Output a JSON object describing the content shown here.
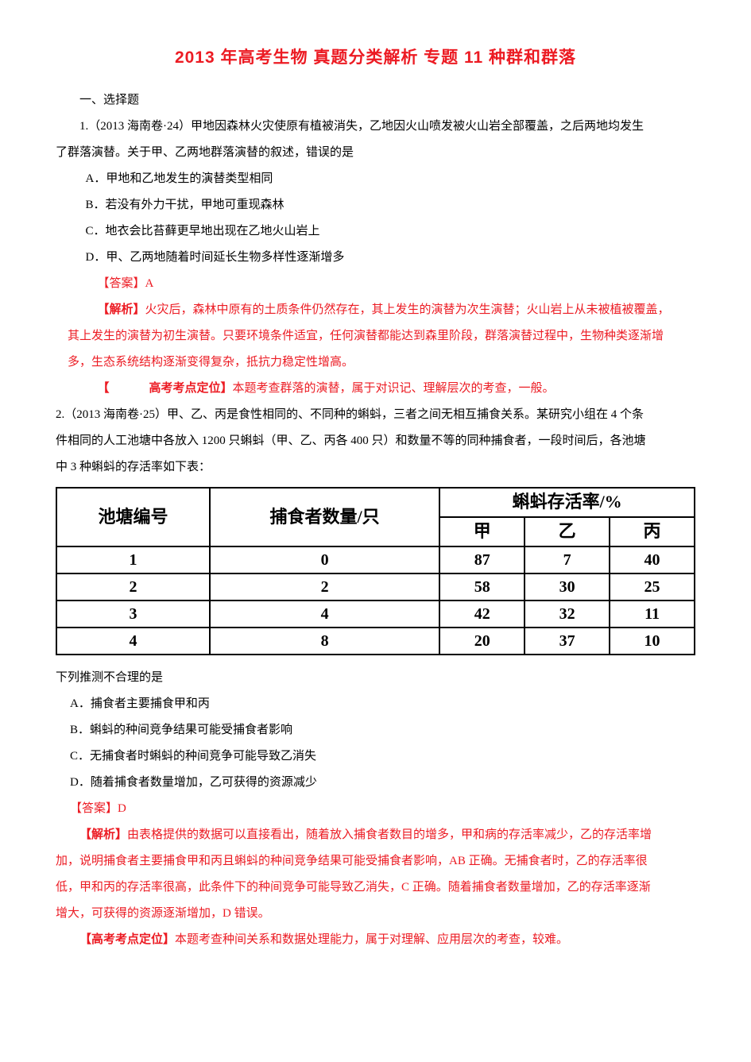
{
  "title": "2013 年高考生物 真题分类解析 专题 11 种群和群落",
  "section_header": "一、选择题",
  "q1": {
    "stem_part1": "1.（2013 海南卷·24）甲地因森林火灾使原有植被消失，乙地因火山喷发被火山岩全部覆盖，之后两地均发生",
    "stem_part2": "了群落演替。关于甲、乙两地群落演替的叙述，错误的是",
    "opt_a": "A．甲地和乙地发生的演替类型相同",
    "opt_b": "B．若没有外力干扰，甲地可重现森林",
    "opt_c": "C．地衣会比苔藓更早地出现在乙地火山岩上",
    "opt_d": "D．甲、乙两地随着时间延长生物多样性逐渐增多",
    "ans_label": "【答案】A",
    "jiexi_lead": "【解析】",
    "jiexi_l1_rest": "火灾后，森林中原有的土质条件仍然存在，其上发生的演替为次生演替；火山岩上从未被植被覆盖，",
    "jiexi_l2": "其上发生的演替为初生演替。只要环境条件适宜，任何演替都能达到森里阶段，群落演替过程中，生物种类逐渐增",
    "jiexi_l3": "多，生态系统结构逐渐变得复杂，抵抗力稳定性增高。",
    "kaodian_lead": "【",
    "kaodian_mid": "高考考点定位】",
    "kaodian_body": "本题考查群落的演替，属于对识记、理解层次的考查，一般。"
  },
  "q2": {
    "stem_l1": "2.（2013 海南卷·25）甲、乙、丙是食性相同的、不同种的蝌蚪，三者之间无相互捕食关系。某研究小组在 4 个条",
    "stem_l2": "件相同的人工池塘中各放入 1200 只蝌蚪（甲、乙、丙各 400 只）和数量不等的同种捕食者，一段时间后，各池塘",
    "stem_l3": "中 3 种蝌蚪的存活率如下表：",
    "table": {
      "headers": {
        "pool_no": "池塘编号",
        "predator_count": "捕食者数量/只",
        "survival_header": "蝌蚪存活率/%",
        "sub": [
          "甲",
          "乙",
          "丙"
        ]
      },
      "col_widths": [
        "24%",
        "36%",
        "13.3%",
        "13.3%",
        "13.3%"
      ],
      "rows": [
        {
          "no": "1",
          "pred": "0",
          "a": "87",
          "b": "7",
          "c": "40"
        },
        {
          "no": "2",
          "pred": "2",
          "a": "58",
          "b": "30",
          "c": "25"
        },
        {
          "no": "3",
          "pred": "4",
          "a": "42",
          "b": "32",
          "c": "11"
        },
        {
          "no": "4",
          "pred": "8",
          "a": "20",
          "b": "37",
          "c": "10"
        }
      ]
    },
    "below_table": "下列推测不合理的是",
    "opt_a": "A．捕食者主要捕食甲和丙",
    "opt_b": "B．蝌蚪的种间竞争结果可能受捕食者影响",
    "opt_c": "C．无捕食者时蝌蚪的种间竞争可能导致乙消失",
    "opt_d": "D．随着捕食者数量增加，乙可获得的资源减少",
    "ans_label": "【答案】D",
    "jiexi_lead": "【解析】",
    "jiexi_l1_rest": "由表格提供的数据可以直接看出，随着放入捕食者数目的增多，甲和病的存活率减少，乙的存活率增",
    "jiexi_l2": "加，说明捕食者主要捕食甲和丙且蝌蚪的种间竞争结果可能受捕食者影响，AB 正确。无捕食者时，乙的存活率很",
    "jiexi_l3": "低，甲和丙的存活率很高，此条件下的种间竞争可能导致乙消失，C 正确。随着捕食者数量增加，乙的存活率逐渐",
    "jiexi_l4": "增大，可获得的资源逐渐增加，D 错误。",
    "kaodian_lead": "【高考考点定位】",
    "kaodian_body": "本题考查种间关系和数据处理能力，属于对理解、应用层次的考查，较难。"
  }
}
